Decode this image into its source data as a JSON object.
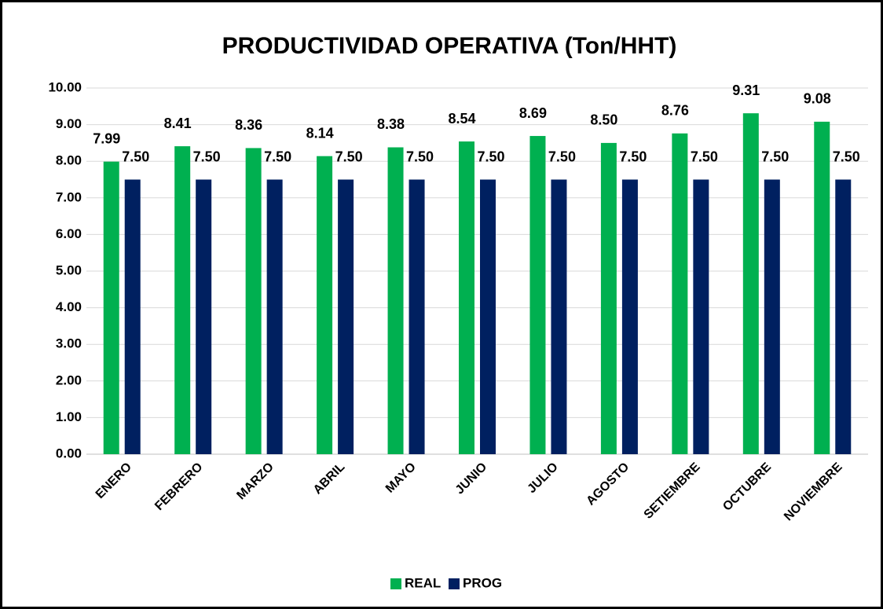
{
  "chart_data": {
    "type": "bar",
    "title": "PRODUCTIVIDAD OPERATIVA (Ton/HHT)",
    "categories": [
      "ENERO",
      "FEBRERO",
      "MARZO",
      "ABRIL",
      "MAYO",
      "JUNIO",
      "JULIO",
      "AGOSTO",
      "SETIEMBRE",
      "OCTUBRE",
      "NOVIEMBRE"
    ],
    "series": [
      {
        "name": "REAL",
        "color": "#00b050",
        "values": [
          7.99,
          8.41,
          8.36,
          8.14,
          8.38,
          8.54,
          8.69,
          8.5,
          8.76,
          9.31,
          9.08
        ],
        "value_labels": [
          "7.99",
          "8.41",
          "8.36",
          "8.14",
          "8.38",
          "8.54",
          "8.69",
          "8.50",
          "8.76",
          "9.31",
          "9.08"
        ]
      },
      {
        "name": "PROG",
        "color": "#002060",
        "values": [
          7.5,
          7.5,
          7.5,
          7.5,
          7.5,
          7.5,
          7.5,
          7.5,
          7.5,
          7.5,
          7.5
        ],
        "value_labels": [
          "7.50",
          "7.50",
          "7.50",
          "7.50",
          "7.50",
          "7.50",
          "7.50",
          "7.50",
          "7.50",
          "7.50",
          "7.50"
        ]
      }
    ],
    "ylim": [
      0,
      10
    ],
    "yticks": [
      {
        "value": 0,
        "label": "0.00"
      },
      {
        "value": 1,
        "label": "1.00"
      },
      {
        "value": 2,
        "label": "2.00"
      },
      {
        "value": 3,
        "label": "3.00"
      },
      {
        "value": 4,
        "label": "4.00"
      },
      {
        "value": 5,
        "label": "5.00"
      },
      {
        "value": 6,
        "label": "6.00"
      },
      {
        "value": 7,
        "label": "7.00"
      },
      {
        "value": 8,
        "label": "8.00"
      },
      {
        "value": 9,
        "label": "9.00"
      },
      {
        "value": 10,
        "label": "10.00"
      }
    ],
    "grid": true,
    "legend": "bottom"
  }
}
